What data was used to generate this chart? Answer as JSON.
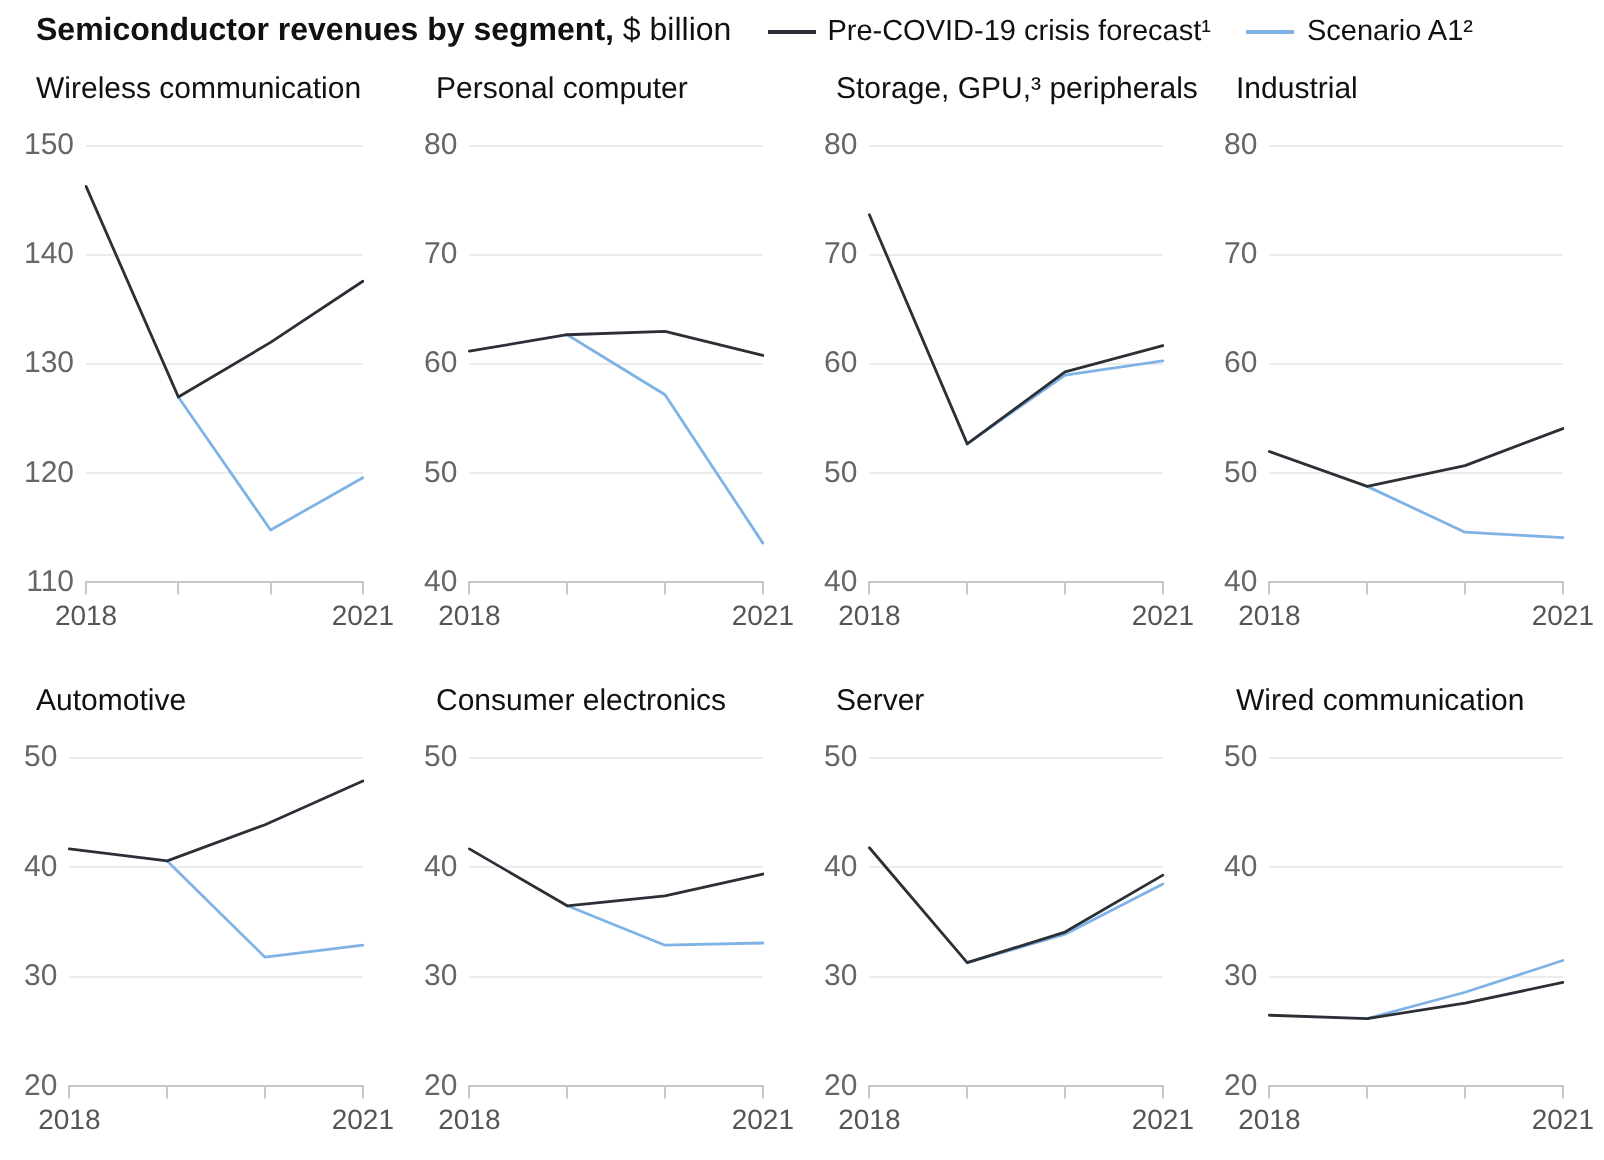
{
  "chart_data": [
    {
      "type": "line",
      "title": "Wireless communication",
      "annotations": [
        "Semiconductor revenues by segment,",
        "$ billion"
      ],
      "legend": "top right",
      "grid": "y",
      "marker": "none",
      "categories": [
        "2018",
        null,
        null,
        "2021"
      ],
      "ylim": [
        110,
        150
      ],
      "yticks": [
        110,
        120,
        130,
        140,
        150
      ],
      "series": [
        {
          "name": "Pre-COVID-19 crisis forecast¹",
          "color": "#2b2f36",
          "values": [
            146.3,
            127,
            132,
            137.6
          ]
        },
        {
          "name": "Scenario A1²",
          "color": "#7fb3e6",
          "values": [
            null,
            127,
            114.8,
            119.6
          ]
        }
      ]
    },
    {
      "type": "line",
      "title": "Personal computer",
      "grid": "y",
      "marker": "none",
      "categories": [
        "2018",
        null,
        null,
        "2021"
      ],
      "ylim": [
        40,
        80
      ],
      "yticks": [
        40,
        50,
        60,
        70,
        80
      ],
      "series": [
        {
          "color": "#2b2f36",
          "values": [
            61.2,
            62.7,
            63.0,
            60.8
          ]
        },
        {
          "color": "#7fb3e6",
          "values": [
            null,
            62.7,
            57.2,
            43.6
          ]
        }
      ]
    },
    {
      "type": "line",
      "title": "Storage, GPU,³ peripherals",
      "grid": "y",
      "marker": "none",
      "categories": [
        "2018",
        null,
        null,
        "2021"
      ],
      "ylim": [
        40,
        80
      ],
      "yticks": [
        40,
        50,
        60,
        70,
        80
      ],
      "series": [
        {
          "color": "#2b2f36",
          "values": [
            73.7,
            52.7,
            59.3,
            61.7
          ]
        },
        {
          "color": "#7fb3e6",
          "values": [
            null,
            52.7,
            59.0,
            60.3
          ]
        }
      ]
    },
    {
      "type": "line",
      "title": "Industrial",
      "grid": "y",
      "marker": "none",
      "categories": [
        "2018",
        null,
        null,
        "2021"
      ],
      "ylim": [
        40,
        80
      ],
      "yticks": [
        40,
        50,
        60,
        70,
        80
      ],
      "series": [
        {
          "color": "#2b2f36",
          "values": [
            52.0,
            48.8,
            50.7,
            54.1
          ]
        },
        {
          "color": "#7fb3e6",
          "values": [
            null,
            48.8,
            44.6,
            44.1
          ]
        }
      ]
    },
    {
      "type": "line",
      "title": "Automotive",
      "grid": "y",
      "marker": "none",
      "categories": [
        "2018",
        null,
        null,
        "2021"
      ],
      "ylim": [
        20,
        50
      ],
      "yticks": [
        20,
        30,
        40,
        50
      ],
      "series": [
        {
          "color": "#2b2f36",
          "values": [
            41.7,
            40.6,
            43.9,
            47.9
          ]
        },
        {
          "color": "#7fb3e6",
          "values": [
            null,
            40.6,
            31.8,
            32.9
          ]
        }
      ]
    },
    {
      "type": "line",
      "title": "Consumer electronics",
      "grid": "y",
      "marker": "none",
      "categories": [
        "2018",
        null,
        null,
        "2021"
      ],
      "ylim": [
        20,
        50
      ],
      "yticks": [
        20,
        30,
        40,
        50
      ],
      "series": [
        {
          "color": "#2b2f36",
          "values": [
            41.7,
            36.5,
            37.4,
            39.4
          ]
        },
        {
          "color": "#7fb3e6",
          "values": [
            null,
            36.5,
            32.9,
            33.1
          ]
        }
      ]
    },
    {
      "type": "line",
      "title": "Server",
      "grid": "y",
      "marker": "none",
      "categories": [
        "2018",
        null,
        null,
        "2021"
      ],
      "ylim": [
        20,
        50
      ],
      "yticks": [
        20,
        30,
        40,
        50
      ],
      "series": [
        {
          "color": "#2b2f36",
          "values": [
            41.8,
            31.3,
            34.1,
            39.3
          ]
        },
        {
          "color": "#7fb3e6",
          "values": [
            null,
            31.3,
            33.9,
            38.5
          ]
        }
      ]
    },
    {
      "type": "line",
      "title": "Wired communication",
      "grid": "y",
      "marker": "none",
      "categories": [
        "2018",
        null,
        null,
        "2021"
      ],
      "ylim": [
        20,
        50
      ],
      "yticks": [
        20,
        30,
        40,
        50
      ],
      "series": [
        {
          "color": "#2b2f36",
          "values": [
            26.5,
            26.2,
            27.6,
            29.5
          ]
        },
        {
          "color": "#7fb3e6",
          "values": [
            null,
            26.2,
            28.6,
            31.5
          ]
        }
      ]
    }
  ]
}
